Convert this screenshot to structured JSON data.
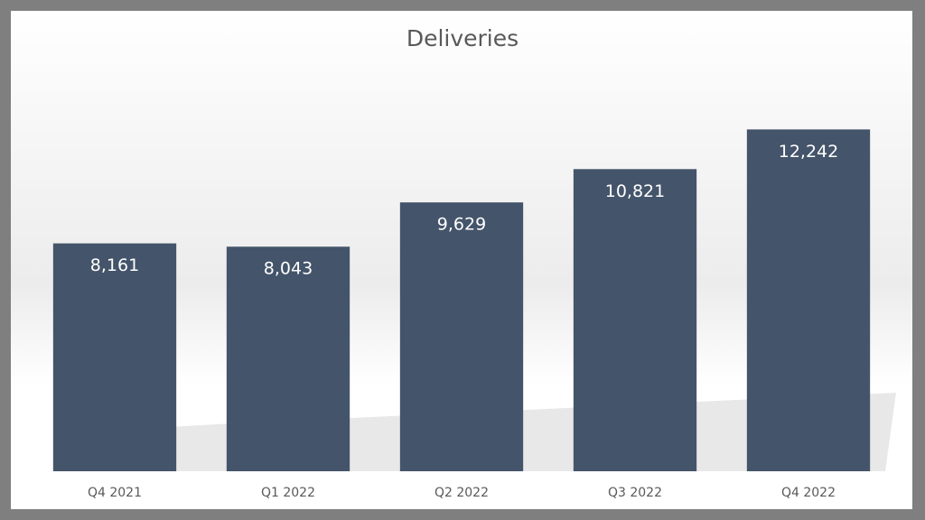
{
  "chart_data": {
    "type": "bar",
    "title": "Deliveries",
    "categories": [
      "Q4 2021",
      "Q1 2022",
      "Q2 2022",
      "Q3 2022",
      "Q4 2022"
    ],
    "values": [
      8161,
      8043,
      9629,
      10821,
      12242
    ],
    "value_labels": [
      "8,161",
      "8,043",
      "9,629",
      "10,821",
      "12,242"
    ],
    "color": "#44546a",
    "ylim": [
      0,
      14000
    ]
  }
}
